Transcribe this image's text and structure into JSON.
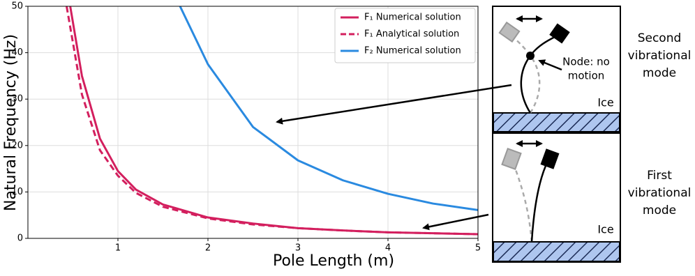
{
  "chart_data": {
    "type": "line",
    "x_label": "Pole Length (m)",
    "y_label": "Natural Frequency (Hz)",
    "xlim": [
      0,
      5
    ],
    "ylim": [
      0,
      50
    ],
    "xticks": [
      1,
      2,
      3,
      4,
      5
    ],
    "yticks": [
      0,
      10,
      20,
      30,
      40,
      50
    ],
    "grid": true,
    "legend": "upper right",
    "series": [
      {
        "name": "F₁ Numerical solution",
        "color": "#d31f5e",
        "style": "solid",
        "x": [
          0.47,
          0.6,
          0.8,
          1.0,
          1.2,
          1.5,
          2.0,
          2.5,
          3.0,
          3.5,
          4.0,
          4.5,
          5.0
        ],
        "values": [
          50,
          35,
          21.5,
          14.5,
          10.5,
          7.3,
          4.5,
          3.2,
          2.2,
          1.7,
          1.3,
          1.1,
          0.9
        ]
      },
      {
        "name": "F₁ Analytical solution",
        "color": "#d31f5e",
        "style": "dashed",
        "x": [
          0.43,
          0.6,
          0.8,
          1.0,
          1.2,
          1.5,
          2.0,
          2.5,
          3.0,
          3.5,
          4.0,
          4.5,
          5.0
        ],
        "values": [
          50,
          31,
          19,
          13.5,
          9.8,
          6.8,
          4.3,
          3.0,
          2.2,
          1.7,
          1.3,
          1.1,
          0.9
        ]
      },
      {
        "name": "F₂ Numerical solution",
        "color": "#2a8ae0",
        "style": "solid",
        "x": [
          1.69,
          2.0,
          2.5,
          3.0,
          3.5,
          4.0,
          4.5,
          5.0
        ],
        "values": [
          50,
          37.5,
          24,
          16.8,
          12.5,
          9.6,
          7.5,
          6.1
        ]
      }
    ]
  },
  "diagram": {
    "ice_labels": [
      "Ice",
      "Ice"
    ],
    "node_label": [
      "Node: no",
      "motion"
    ],
    "mode_labels": [
      [
        "Second",
        "vibrational",
        "mode"
      ],
      [
        "First",
        "vibrational",
        "mode"
      ]
    ]
  }
}
